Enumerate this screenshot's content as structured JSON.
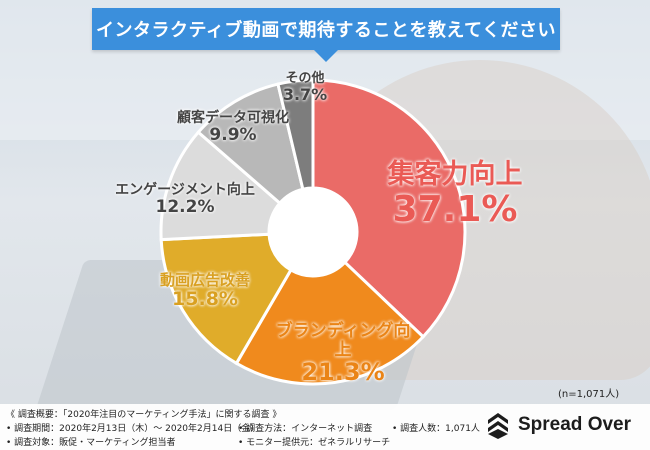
{
  "title": "インタラクティブ動画で期待することを教えてください",
  "sample_size": "(n=1,071人)",
  "chart_data": {
    "type": "pie",
    "categories": [
      "集客力向上",
      "ブランディング向上",
      "動画広告改善",
      "エンゲージメント向上",
      "顧客データ可視化",
      "その他"
    ],
    "values": [
      37.1,
      21.3,
      15.8,
      12.2,
      9.9,
      3.7
    ],
    "value_labels": [
      "37.1%",
      "21.3%",
      "15.8%",
      "12.2%",
      "9.9%",
      "3.7%"
    ],
    "colors": [
      "#ea6b67",
      "#f08a1d",
      "#e0ac2a",
      "#dcdcdc",
      "#b8b8b8",
      "#7d7d7d"
    ],
    "label_colors": [
      "#ea5a55",
      "#ea8416",
      "#d9a021",
      "#444444",
      "#444444",
      "#444444"
    ],
    "donut": true,
    "start": "top, clockwise"
  },
  "footer": {
    "overview": "《 調査概要：「2020年注目のマーケティング手法」に関する調査 》",
    "period": "• 調査期間：2020年2月13日（木）～ 2020年2月14日（金）",
    "method": "• 調査方法：インターネット調査",
    "count": "• 調査人数：1,071人",
    "target": "• 調査対象：販促・マーケティング担当者",
    "provider": "• モニター提供元：ゼネラルリサーチ"
  },
  "brand": {
    "name": "Spread Over",
    "icon": "spread-over-logo-icon"
  }
}
